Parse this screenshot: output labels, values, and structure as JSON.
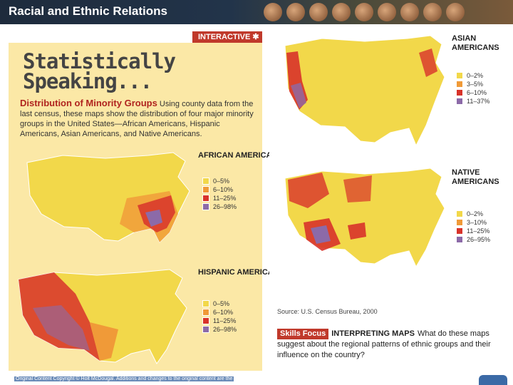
{
  "header": {
    "title": "Racial and Ethnic Relations"
  },
  "left": {
    "badge": "INTERACTIVE",
    "title_line1": "Statistically",
    "title_line2": "Speaking...",
    "heading": "Distribution of Minority Groups",
    "body": "Using county data from the last census, these maps show the distribution of four major minority groups in the United States—African Americans, Hispanic Americans, Asian Americans, and Native Americans."
  },
  "maps": [
    {
      "label": "AFRICAN AMERICANS",
      "legend": [
        "0–5%",
        "6–10%",
        "11–25%",
        "26–98%"
      ]
    },
    {
      "label": "HISPANIC AMERICANS",
      "legend": [
        "0–5%",
        "6–10%",
        "11–25%",
        "26–98%"
      ]
    },
    {
      "label": "ASIAN AMERICANS",
      "legend": [
        "0–2%",
        "3–5%",
        "6–10%",
        "11–37%"
      ]
    },
    {
      "label": "NATIVE AMERICANS",
      "legend": [
        "0–2%",
        "3–10%",
        "11–25%",
        "26–95%"
      ]
    }
  ],
  "legend_colors": [
    "#f2d84a",
    "#f09a38",
    "#d8332a",
    "#8c6aa8"
  ],
  "source": "Source: U.S. Census Bureau, 2000",
  "skills": {
    "badge": "Skills Focus",
    "head": "INTERPRETING MAPS",
    "question": "What do these maps suggest about the regional patterns of ethnic groups and their influence on the country?"
  },
  "footer": {
    "copyright": "Original Content Copyright © Holt McDougal. Additions and changes to the original content are the"
  }
}
